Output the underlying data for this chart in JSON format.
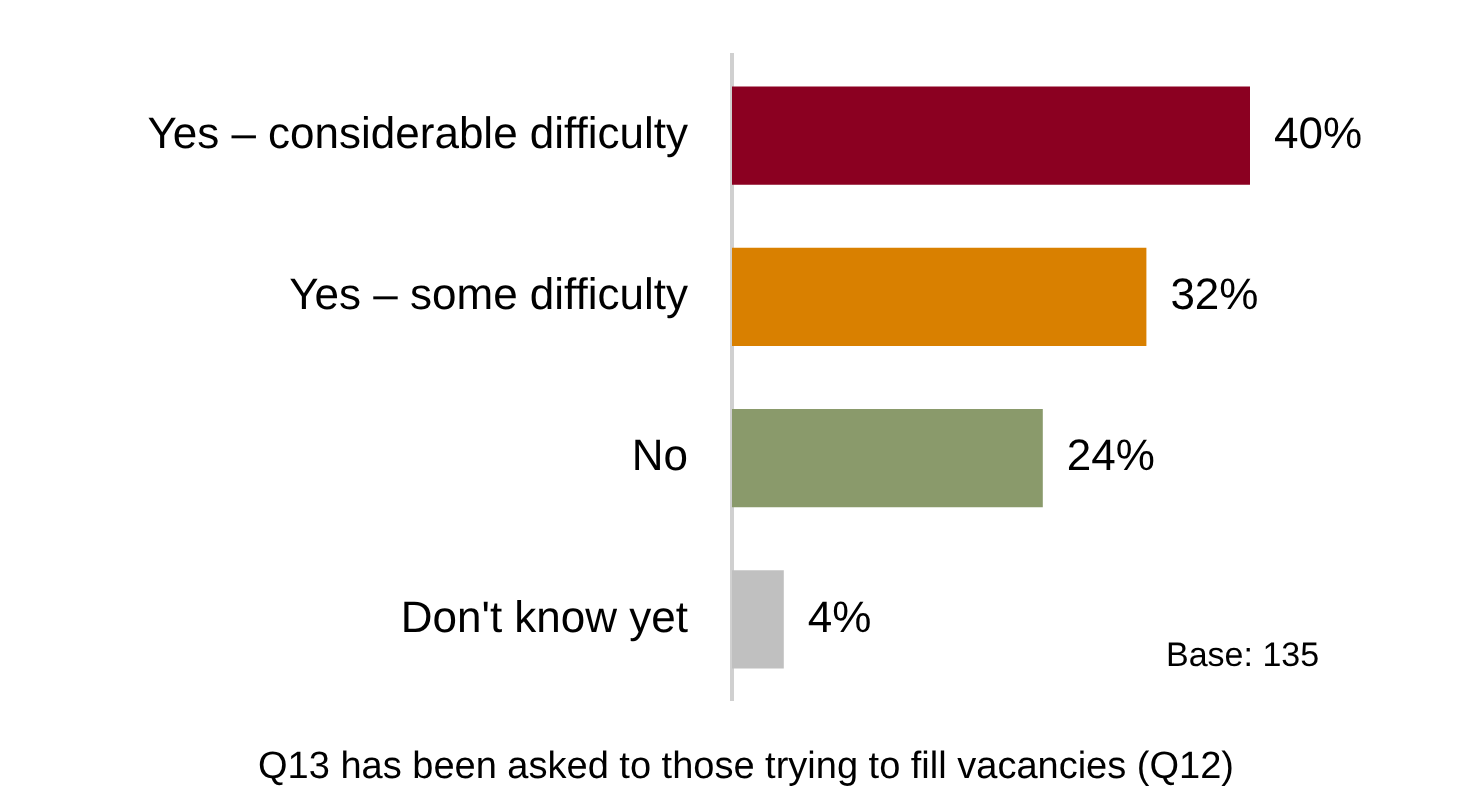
{
  "chart_data": {
    "type": "bar",
    "orientation": "horizontal",
    "categories": [
      "Yes – considerable difficulty",
      "Yes – some difficulty",
      "No",
      "Don't know yet"
    ],
    "values": [
      40,
      32,
      24,
      4
    ],
    "colors": [
      "#8b0021",
      "#d98000",
      "#8a9a6b",
      "#c0c0c0"
    ],
    "value_labels": [
      "40%",
      "32%",
      "24%",
      "4%"
    ],
    "tick_labels": "y",
    "legend": false,
    "annotations": [
      "Base: 135",
      "Q13 has been asked to those trying to fill vacancies (Q12)"
    ]
  }
}
